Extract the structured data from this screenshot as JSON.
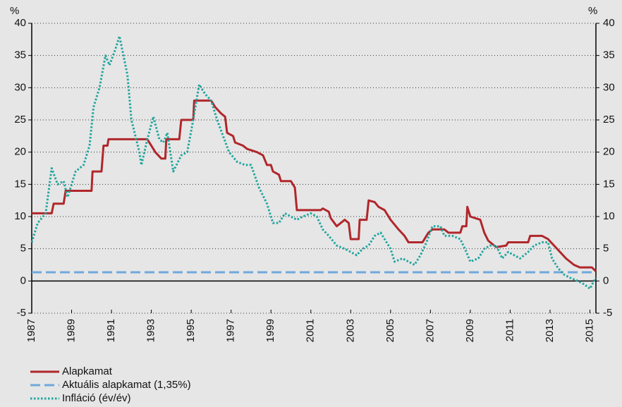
{
  "chart_data": {
    "type": "line",
    "y_unit_left": "%",
    "y_unit_right": "%",
    "xlim": [
      1987,
      2015.3
    ],
    "xticks": [
      1987,
      1989,
      1991,
      1993,
      1995,
      1997,
      1999,
      2001,
      2003,
      2005,
      2007,
      2009,
      2011,
      2013,
      2015
    ],
    "ylim": [
      -5,
      40
    ],
    "yticks": [
      -5,
      0,
      5,
      10,
      15,
      20,
      25,
      30,
      35,
      40
    ],
    "y2lim": [
      -5,
      40
    ],
    "y2ticks": [
      -5,
      0,
      5,
      10,
      15,
      20,
      25,
      30,
      35,
      40
    ],
    "grid": true,
    "legend": "bottom-left",
    "series": [
      {
        "name": "Alapkamat",
        "color": "#b0272b",
        "dash": "solid",
        "x": [
          1987.0,
          1988.0,
          1988.1,
          1988.6,
          1988.7,
          1990.0,
          1990.05,
          1990.5,
          1990.6,
          1990.8,
          1990.85,
          1992.8,
          1993.0,
          1993.2,
          1993.5,
          1993.7,
          1993.75,
          1994.4,
          1994.5,
          1995.1,
          1995.15,
          1996.0,
          1996.2,
          1996.5,
          1996.7,
          1996.8,
          1997.1,
          1997.2,
          1997.6,
          1997.8,
          1998.3,
          1998.6,
          1998.8,
          1999.0,
          1999.1,
          1999.4,
          1999.5,
          2000.0,
          2000.2,
          2000.3,
          2001.5,
          2001.6,
          2001.9,
          2002.0,
          2002.3,
          2002.7,
          2002.9,
          2003.0,
          2003.4,
          2003.45,
          2003.8,
          2003.9,
          2004.2,
          2004.4,
          2004.7,
          2005.0,
          2005.4,
          2005.7,
          2005.9,
          2006.6,
          2006.7,
          2006.9,
          2007.1,
          2007.7,
          2007.9,
          2008.5,
          2008.6,
          2008.8,
          2008.85,
          2009.0,
          2009.5,
          2009.7,
          2009.9,
          2010.3,
          2010.8,
          2010.9,
          2011.9,
          2012.0,
          2012.6,
          2012.9,
          2013.2,
          2013.5,
          2013.8,
          2014.2,
          2014.5,
          2015.1,
          2015.3
        ],
        "values": [
          10.5,
          10.5,
          12,
          12,
          14,
          14,
          17,
          17,
          21,
          21,
          22,
          22,
          21,
          20,
          19,
          19,
          22,
          22,
          25,
          25,
          28,
          28,
          27,
          26,
          25.5,
          23,
          22.5,
          21.5,
          21,
          20.5,
          20,
          19.5,
          18,
          18,
          17,
          16.5,
          15.5,
          15.5,
          14.5,
          11,
          11,
          11.25,
          10.75,
          9.75,
          8.5,
          9.5,
          9,
          6.5,
          6.5,
          9.5,
          9.5,
          12.5,
          12.25,
          11.5,
          11,
          9.5,
          8,
          7,
          6,
          6,
          6.5,
          7.5,
          8,
          8,
          7.5,
          7.5,
          8.5,
          8.5,
          11.5,
          10,
          9.5,
          7.5,
          6.25,
          5.25,
          5.5,
          6,
          6,
          7,
          7,
          6.5,
          5.5,
          4.5,
          3.5,
          2.5,
          2.1,
          2.1,
          1.5
        ]
      },
      {
        "name": "Aktuális alapkamat (1,35%)",
        "color": "#6fa8dc",
        "dash": "dashed",
        "x": [
          1987.0,
          2015.3
        ],
        "values": [
          1.35,
          1.35
        ]
      },
      {
        "name": "Infláció (év/év)",
        "color": "#1fa59e",
        "dash": "dotted",
        "x": [
          1987.0,
          1987.3,
          1987.7,
          1988.0,
          1988.3,
          1988.6,
          1988.8,
          1989.2,
          1989.6,
          1989.9,
          1990.1,
          1990.4,
          1990.7,
          1990.9,
          1991.2,
          1991.4,
          1991.6,
          1991.8,
          1992.0,
          1992.4,
          1992.5,
          1992.8,
          1993.1,
          1993.4,
          1993.6,
          1993.8,
          1994.1,
          1994.5,
          1994.8,
          1995.1,
          1995.4,
          1995.7,
          1996.0,
          1996.3,
          1996.6,
          1996.9,
          1997.3,
          1997.7,
          1998.0,
          1998.4,
          1998.8,
          1999.1,
          1999.4,
          1999.7,
          2000.0,
          2000.3,
          2000.6,
          2001.0,
          2001.3,
          2001.6,
          2001.9,
          2002.3,
          2002.7,
          2003.0,
          2003.3,
          2003.6,
          2003.9,
          2004.2,
          2004.5,
          2004.8,
          2005.0,
          2005.2,
          2005.6,
          2005.9,
          2006.2,
          2006.5,
          2006.8,
          2007.1,
          2007.5,
          2007.7,
          2008.1,
          2008.5,
          2008.8,
          2009.0,
          2009.4,
          2009.7,
          2010.0,
          2010.3,
          2010.6,
          2010.9,
          2011.2,
          2011.5,
          2011.9,
          2012.2,
          2012.6,
          2012.9,
          2013.1,
          2013.4,
          2013.7,
          2014.0,
          2014.4,
          2014.7,
          2015.0,
          2015.2,
          2015.3
        ],
        "values": [
          6,
          9,
          10.5,
          17.5,
          15,
          15.5,
          13,
          17,
          18,
          21,
          27,
          30,
          35,
          33.5,
          36,
          38,
          35,
          32,
          25,
          20,
          18,
          22,
          25.5,
          22,
          21.5,
          23,
          17,
          19.5,
          20,
          25,
          30.5,
          29,
          28,
          25,
          22.5,
          20,
          18.5,
          18,
          18,
          14.5,
          12,
          9,
          9,
          10.5,
          10,
          9.5,
          10,
          10.5,
          10,
          8,
          7,
          5.5,
          5,
          4.5,
          4,
          5,
          5.5,
          7,
          7.5,
          6,
          5,
          3,
          3.5,
          3,
          2.5,
          4,
          6,
          8.5,
          8.5,
          7,
          7,
          6.5,
          4.5,
          3,
          3.5,
          5,
          5.5,
          5.5,
          3.5,
          4.5,
          4,
          3.5,
          4.5,
          5.5,
          6,
          6,
          3.5,
          2,
          1,
          0.5,
          0,
          -0.5,
          -1.2,
          0,
          0.5
        ]
      }
    ]
  }
}
